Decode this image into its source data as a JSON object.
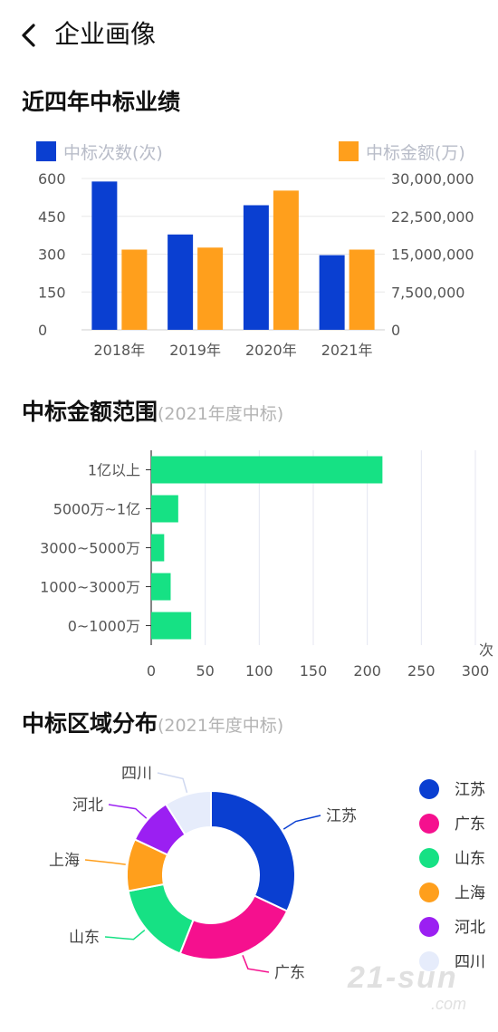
{
  "header": {
    "back_icon": "chevron-left-icon",
    "title": "企业画像"
  },
  "section1": {
    "title": "近四年中标业绩"
  },
  "section2": {
    "title": "中标金额范围",
    "subtitle": "(2021年度中标)"
  },
  "section3": {
    "title": "中标区域分布",
    "subtitle": "(2021年度中标)"
  },
  "watermark": {
    "line1": "21-sun",
    ".com": ".com"
  },
  "chart_data": [
    {
      "type": "bar",
      "categories": [
        "2018年",
        "2019年",
        "2020年",
        "2021年"
      ],
      "series": [
        {
          "name": "中标次数(次)",
          "axis": "left",
          "color": "#0a3fd1",
          "values": [
            588,
            378,
            494,
            296
          ]
        },
        {
          "name": "中标金额(万)",
          "axis": "right",
          "color": "#ff9f1c",
          "values": [
            15900000,
            16300000,
            27600000,
            15900000
          ]
        }
      ],
      "yleft": {
        "ylim": [
          0,
          600
        ],
        "ticks": [
          "600",
          "450",
          "300",
          "150",
          "0"
        ]
      },
      "yright": {
        "ylim": [
          0,
          30000000
        ],
        "ticks": [
          "30,000,000",
          "22,500,000",
          "15,000,000",
          "7,500,000",
          "0"
        ]
      },
      "legend_position": "top",
      "grid": true
    },
    {
      "type": "bar",
      "orientation": "horizontal",
      "categories": [
        "1亿以上",
        "5000万~1亿",
        "3000~5000万",
        "1000~3000万",
        "0~1000万"
      ],
      "values": [
        214,
        25,
        12,
        18,
        37
      ],
      "color": "#16e184",
      "xlim": [
        0,
        300
      ],
      "xticks": [
        "0",
        "50",
        "100",
        "150",
        "200",
        "250",
        "300"
      ],
      "xunit": "次",
      "grid": true
    },
    {
      "type": "pie",
      "donut": true,
      "labels": [
        "江苏",
        "广东",
        "山东",
        "上海",
        "河北",
        "四川"
      ],
      "values": [
        32,
        24,
        16,
        10,
        9,
        9
      ],
      "colors": [
        "#0a3fd1",
        "#f5108e",
        "#16e184",
        "#ff9f1c",
        "#9b1ff2",
        "#e6ecfb"
      ],
      "legend_position": "right"
    }
  ]
}
